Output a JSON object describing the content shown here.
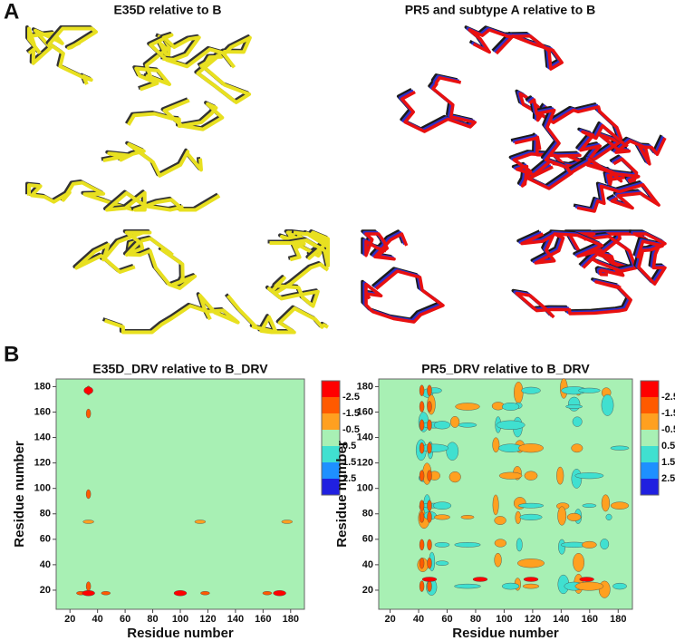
{
  "panel_a": {
    "label": "A",
    "left_title": "E35D relative to B",
    "right_title": "PR5 and subtype A relative to B"
  },
  "panel_b": {
    "label": "B",
    "colorbar": {
      "levels": [
        -2.5,
        -1.5,
        -0.5,
        0.5,
        1.5,
        2.5
      ],
      "colors": [
        "#ff0000",
        "#ff5a00",
        "#ffa020",
        "#a8f0b4",
        "#40e0d0",
        "#1e90ff",
        "#2020e0"
      ]
    },
    "plots": [
      {
        "title": "E35D_DRV relative to B_DRV",
        "x_label": "Residue number",
        "y_label": "Residue number",
        "xlim": [
          10,
          190
        ],
        "ylim": [
          5,
          186
        ],
        "xticks": [
          20,
          40,
          60,
          80,
          100,
          120,
          140,
          160,
          180
        ],
        "yticks": [
          20,
          40,
          60,
          80,
          100,
          120,
          140,
          160,
          180
        ]
      },
      {
        "title": "PR5_DRV relative to B_DRV",
        "x_label": "Residue number",
        "y_label": "Residue number",
        "xlim": [
          12,
          190
        ],
        "ylim": [
          5,
          186
        ],
        "xticks": [
          20,
          40,
          60,
          80,
          100,
          120,
          140,
          160,
          180
        ],
        "yticks": [
          20,
          40,
          60,
          80,
          100,
          120,
          140,
          160,
          180
        ]
      }
    ]
  }
}
